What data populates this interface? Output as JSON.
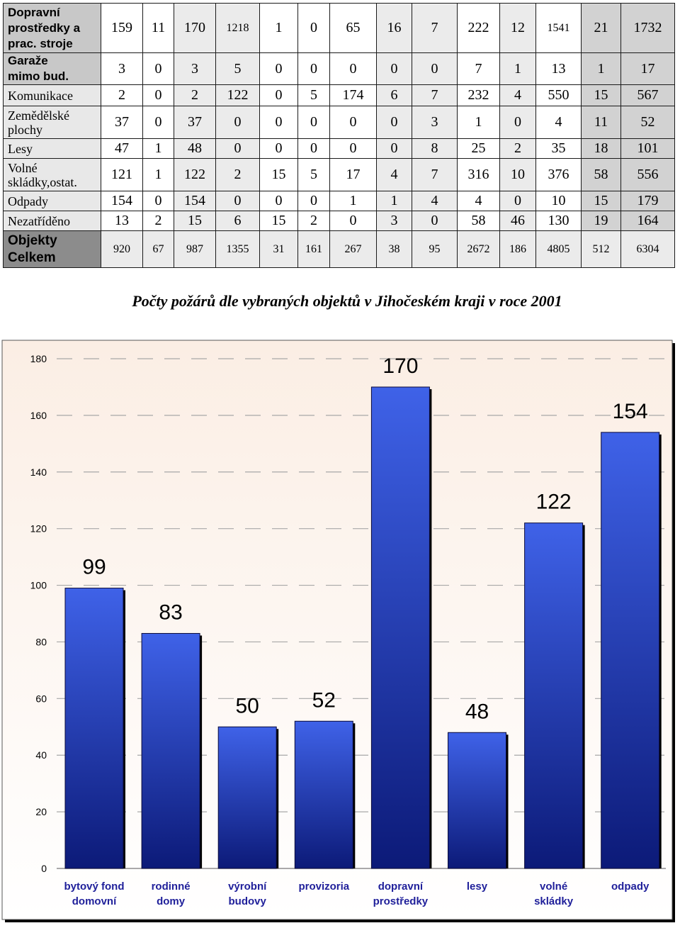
{
  "table": {
    "rows": [
      {
        "label": [
          "Dopravní",
          "prostředky a",
          "prac. stroje"
        ],
        "style": "bold",
        "values": [
          "159",
          "11",
          "170",
          "1218",
          "1",
          "0",
          "65",
          "16",
          "7",
          "222",
          "12",
          "1541",
          "21",
          "1732"
        ]
      },
      {
        "label": [
          "Garaže",
          "mimo bud."
        ],
        "style": "bold",
        "values": [
          "3",
          "0",
          "3",
          "5",
          "0",
          "0",
          "0",
          "0",
          "0",
          "7",
          "1",
          "13",
          "1",
          "17"
        ]
      },
      {
        "label": [
          "Komunikace"
        ],
        "style": "plain",
        "values": [
          "2",
          "0",
          "2",
          "122",
          "0",
          "5",
          "174",
          "6",
          "7",
          "232",
          "4",
          "550",
          "15",
          "567"
        ]
      },
      {
        "label": [
          "Zemědělské",
          "plochy"
        ],
        "style": "plain",
        "values": [
          "37",
          "0",
          "37",
          "0",
          "0",
          "0",
          "0",
          "0",
          "3",
          "1",
          "0",
          "4",
          "11",
          "52"
        ]
      },
      {
        "label": [
          "Lesy"
        ],
        "style": "plain",
        "values": [
          "47",
          "1",
          "48",
          "0",
          "0",
          "0",
          "0",
          "0",
          "8",
          "25",
          "2",
          "35",
          "18",
          "101"
        ]
      },
      {
        "label": [
          "Volné",
          "skládky,ostat."
        ],
        "style": "plain",
        "values": [
          "121",
          "1",
          "122",
          "2",
          "15",
          "5",
          "17",
          "4",
          "7",
          "316",
          "10",
          "376",
          "58",
          "556"
        ]
      },
      {
        "label": [
          "Odpady"
        ],
        "style": "plain",
        "values": [
          "154",
          "0",
          "154",
          "0",
          "0",
          "0",
          "1",
          "1",
          "4",
          "4",
          "0",
          "10",
          "15",
          "179"
        ]
      },
      {
        "label": [
          "Nezatříděno"
        ],
        "style": "plain",
        "values": [
          "13",
          "2",
          "15",
          "6",
          "15",
          "2",
          "0",
          "3",
          "0",
          "58",
          "46",
          "130",
          "19",
          "164"
        ]
      },
      {
        "label": [
          "Objekty",
          "Celkem"
        ],
        "style": "dark",
        "values": [
          "920",
          "67",
          "987",
          "1355",
          "31",
          "161",
          "267",
          "38",
          "95",
          "2672",
          "186",
          "4805",
          "512",
          "6304"
        ]
      }
    ]
  },
  "chart_data": {
    "type": "bar",
    "title": "Počty požárů dle vybraných objektů v Jihočeském kraji v roce 2001",
    "categories": [
      [
        "bytový fond",
        "domovní"
      ],
      [
        "rodinné",
        "domy"
      ],
      [
        "výrobní",
        "budovy"
      ],
      [
        "provizoria"
      ],
      [
        "dopravní",
        "prostředky"
      ],
      [
        "lesy"
      ],
      [
        "volné",
        "skládky"
      ],
      [
        "odpady"
      ]
    ],
    "values": [
      99,
      83,
      50,
      52,
      170,
      48,
      122,
      154
    ],
    "data_labels": [
      "99",
      "83",
      "50",
      "52",
      "170",
      "48",
      "122",
      "154"
    ],
    "ylim": [
      0,
      180
    ],
    "yticks": [
      "0",
      "20",
      "40",
      "60",
      "80",
      "100",
      "120",
      "140",
      "160",
      "180"
    ],
    "grid": "dashed",
    "legend": "none",
    "colors": {
      "bar_top": "#3f62e8",
      "bar_bottom": "#0c1a78",
      "plot_bg_top": "#fbeee4",
      "plot_bg_bottom": "#ffffff",
      "category_label": "#1f1f9a",
      "grid": "#a8a8a8"
    }
  }
}
